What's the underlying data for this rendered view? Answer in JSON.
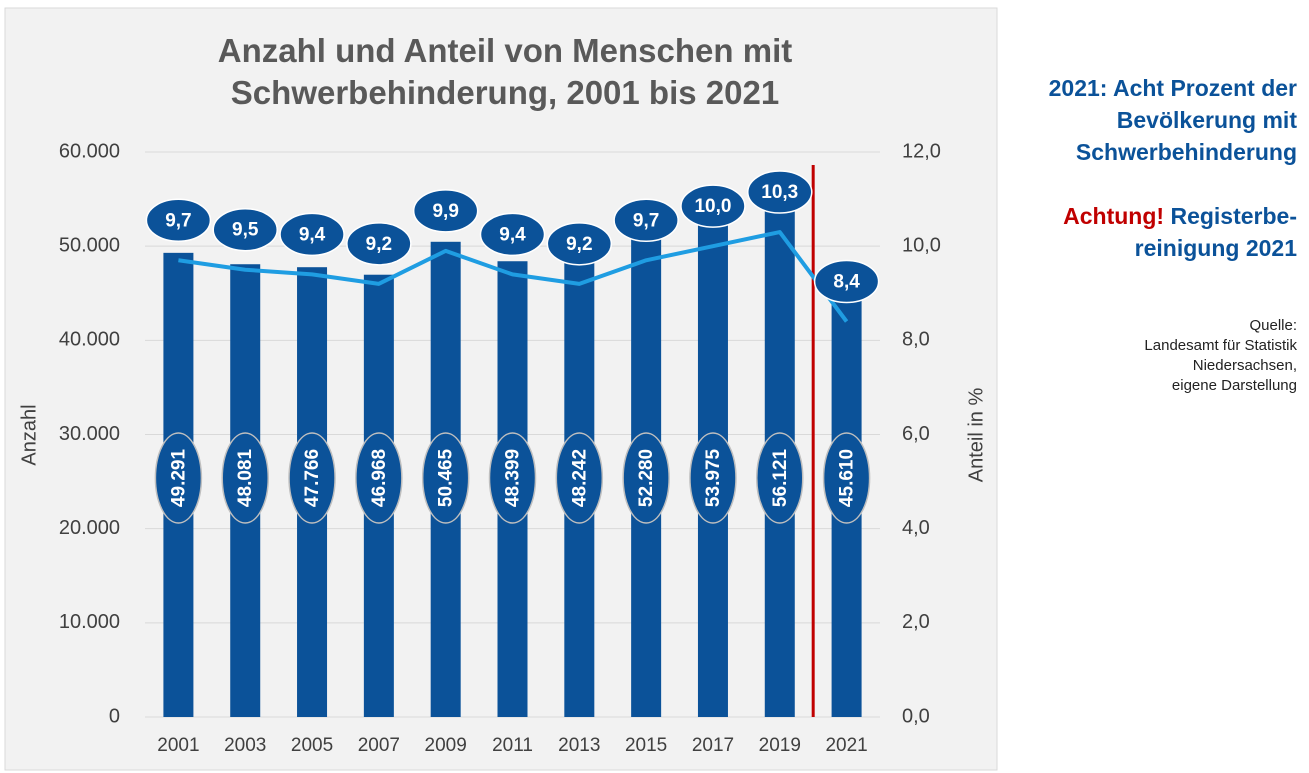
{
  "chart_data": {
    "type": "bar_line",
    "title": [
      "Anzahl und Anteil von Menschen mit",
      "Schwerbehinderung, 2001 bis 2021"
    ],
    "y_label": "Anzahl",
    "y2_label": "Anteil in %",
    "categories": [
      "2001",
      "2003",
      "2005",
      "2007",
      "2009",
      "2011",
      "2013",
      "2015",
      "2017",
      "2019",
      "2021"
    ],
    "series": [
      {
        "name": "Anzahl",
        "type": "bar",
        "color": "#0b5299",
        "values": [
          49291,
          48081,
          47766,
          46968,
          50465,
          48399,
          48242,
          52280,
          53975,
          56121,
          45610
        ],
        "value_labels": [
          "49.291",
          "48.081",
          "47.766",
          "46.968",
          "50.465",
          "48.399",
          "48.242",
          "52.280",
          "53.975",
          "56.121",
          "45.610"
        ]
      },
      {
        "name": "Anteil in %",
        "type": "line",
        "axis": "y2",
        "color": "#1f9de2",
        "values": [
          9.7,
          9.5,
          9.4,
          9.2,
          9.9,
          9.4,
          9.2,
          9.7,
          10.0,
          10.3,
          8.4
        ],
        "value_labels": [
          "9,7",
          "9,5",
          "9,4",
          "9,2",
          "9,9",
          "9,4",
          "9,2",
          "9,7",
          "10,0",
          "10,3",
          "8,4"
        ]
      }
    ],
    "ylim": [
      0,
      60000
    ],
    "yticks": [
      0,
      {
        "value": 10000,
        "label": "10.000"
      },
      {
        "value": 20000,
        "label": "20.000"
      },
      {
        "value": 30000,
        "label": "30.000"
      },
      {
        "value": 40000,
        "label": "40.000"
      },
      {
        "value": 50000,
        "label": "50.000"
      },
      {
        "value": 60000,
        "label": "60.000"
      }
    ],
    "y2lim": [
      0,
      12
    ],
    "y2ticks": [
      {
        "value": 0,
        "label": "0,0"
      },
      {
        "value": 2,
        "label": "2,0"
      },
      {
        "value": 4,
        "label": "4,0"
      },
      {
        "value": 6,
        "label": "6,0"
      },
      {
        "value": 8,
        "label": "8,0"
      },
      {
        "value": 10,
        "label": "10,0"
      },
      {
        "value": 12,
        "label": "12,0"
      }
    ],
    "grid": true,
    "divider_color": "#c00000"
  },
  "annotations": {
    "headline": [
      "2021: Acht Prozent der",
      "Bevölkerung mit",
      "Schwerbehinderung"
    ],
    "warning": {
      "label": "Achtung!",
      "lines": [
        "Registerbe-",
        "reinigung 2021"
      ]
    },
    "source": [
      "Quelle:",
      "Landesamt für Statistik",
      "Niedersachsen,",
      "eigene Darstellung"
    ]
  }
}
